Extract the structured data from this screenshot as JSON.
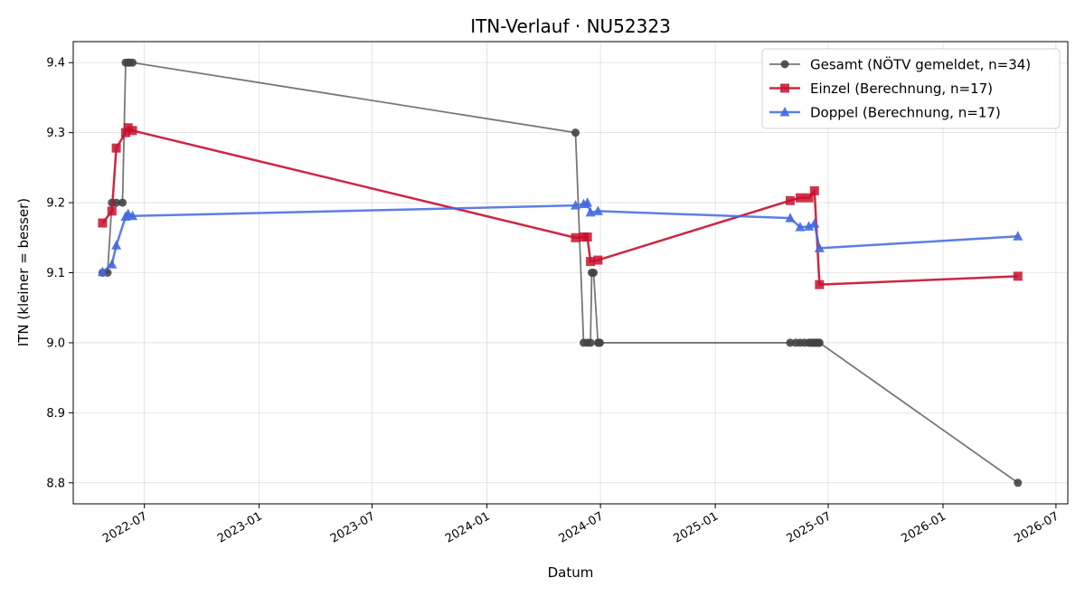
{
  "chart_data": {
    "type": "line",
    "title": "ITN-Verlauf · NU52323",
    "xlabel": "Datum",
    "ylabel": "ITN  (kleiner = besser)",
    "ylim": [
      8.77,
      9.43
    ],
    "xlim": [
      "2022-03-09",
      "2026-07-20"
    ],
    "grid": true,
    "legend_position": "top-right",
    "x_ticks": [
      "2022-07-01",
      "2023-01-01",
      "2023-07-01",
      "2024-01-01",
      "2024-07-01",
      "2025-01-01",
      "2025-07-01",
      "2026-01-01",
      "2026-07-01"
    ],
    "x_tick_labels": [
      "2022-07",
      "2023-01",
      "2023-07",
      "2024-01",
      "2024-07",
      "2025-01",
      "2025-07",
      "2026-01",
      "2026-07"
    ],
    "y_ticks": [
      8.8,
      8.9,
      9.0,
      9.1,
      9.2,
      9.3,
      9.4
    ],
    "y_tick_labels": [
      "8.8",
      "8.9",
      "9.0",
      "9.1",
      "9.2",
      "9.3",
      "9.4"
    ],
    "series": [
      {
        "name": "Gesamt (NÖTV gemeldet, n=34)",
        "color": "#444444",
        "marker": "circle",
        "x": [
          "2022-04-25",
          "2022-05-03",
          "2022-05-10",
          "2022-05-17",
          "2022-05-27",
          "2022-06-01",
          "2022-06-05",
          "2022-06-07",
          "2022-06-12",
          "2024-05-22",
          "2024-06-04",
          "2024-06-10",
          "2024-06-15",
          "2024-06-17",
          "2024-06-20",
          "2024-06-27",
          "2024-06-29",
          "2024-06-30",
          "2025-05-01",
          "2025-05-10",
          "2025-05-17",
          "2025-05-24",
          "2025-05-31",
          "2025-06-03",
          "2025-06-05",
          "2025-06-07",
          "2025-06-09",
          "2025-06-11",
          "2025-06-13",
          "2025-06-14",
          "2025-06-15",
          "2025-06-16",
          "2025-06-17",
          "2026-05-01"
        ],
        "values": [
          9.1,
          9.1,
          9.2,
          9.2,
          9.2,
          9.4,
          9.4,
          9.4,
          9.4,
          9.3,
          9.0,
          9.0,
          9.0,
          9.1,
          9.1,
          9.0,
          9.0,
          9.0,
          9.0,
          9.0,
          9.0,
          9.0,
          9.0,
          9.0,
          9.0,
          9.0,
          9.0,
          9.0,
          9.0,
          9.0,
          9.0,
          9.0,
          9.0,
          8.8
        ]
      },
      {
        "name": "Einzel (Berechnung, n=17)",
        "color": "#c8102e",
        "marker": "square",
        "x": [
          "2022-04-25",
          "2022-05-10",
          "2022-05-17",
          "2022-06-01",
          "2022-06-05",
          "2022-06-12",
          "2024-05-22",
          "2024-06-04",
          "2024-06-10",
          "2024-06-15",
          "2024-06-27",
          "2025-05-01",
          "2025-05-17",
          "2025-05-31",
          "2025-06-09",
          "2025-06-17",
          "2026-05-01"
        ],
        "values": [
          9.171,
          9.188,
          9.278,
          9.3,
          9.307,
          9.303,
          9.15,
          9.151,
          9.151,
          9.116,
          9.118,
          9.203,
          9.207,
          9.207,
          9.217,
          9.083,
          9.095
        ]
      },
      {
        "name": "Doppel (Berechnung, n=17)",
        "color": "#4169e1",
        "marker": "triangle",
        "x": [
          "2022-04-25",
          "2022-05-10",
          "2022-05-17",
          "2022-06-01",
          "2022-06-05",
          "2022-06-12",
          "2024-05-22",
          "2024-06-04",
          "2024-06-10",
          "2024-06-15",
          "2024-06-27",
          "2025-05-01",
          "2025-05-17",
          "2025-05-31",
          "2025-06-09",
          "2025-06-17",
          "2026-05-01"
        ],
        "values": [
          9.101,
          9.112,
          9.139,
          9.18,
          9.184,
          9.181,
          9.196,
          9.198,
          9.2,
          9.186,
          9.188,
          9.178,
          9.165,
          9.166,
          9.17,
          9.135,
          9.152
        ]
      }
    ]
  }
}
